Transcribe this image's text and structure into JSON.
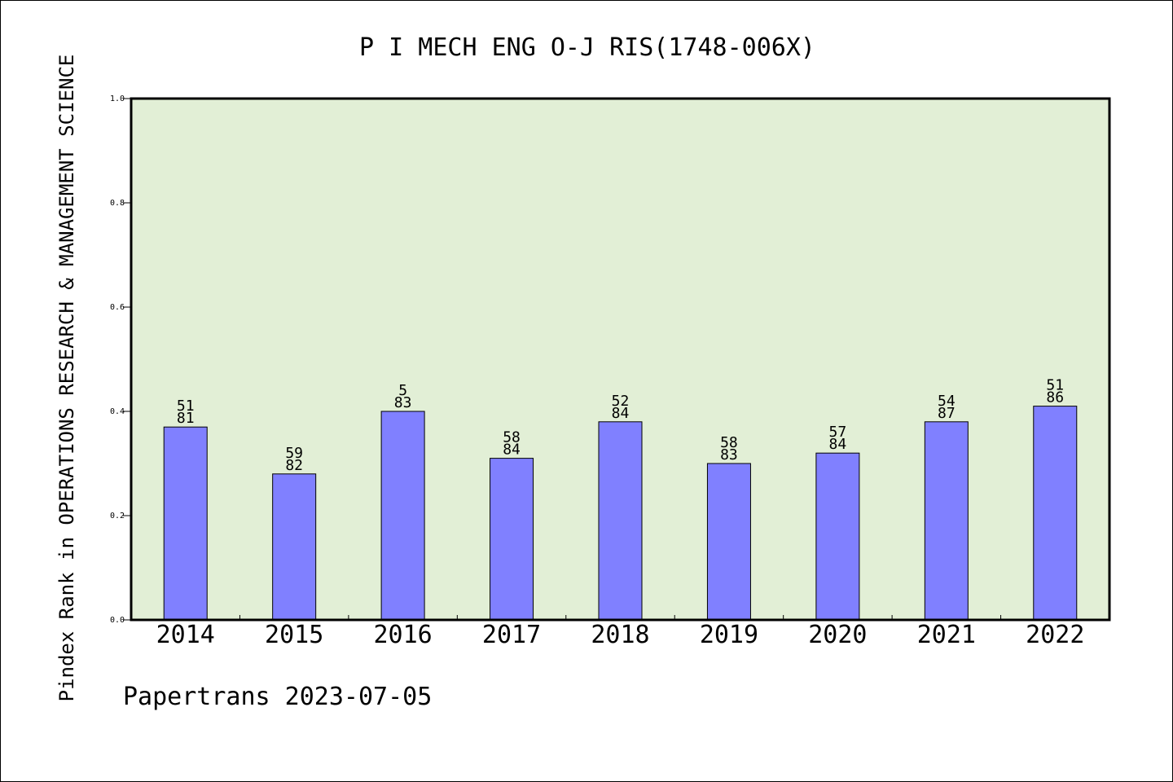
{
  "chart_data": {
    "type": "bar",
    "title": "P I MECH ENG O-J RIS(1748-006X)",
    "ylabel": "Pindex Rank in OPERATIONS RESEARCH & MANAGEMENT SCIENCE",
    "xlabel": "",
    "categories": [
      "2014",
      "2015",
      "2016",
      "2017",
      "2018",
      "2019",
      "2020",
      "2021",
      "2022"
    ],
    "values": [
      0.37,
      0.28,
      0.4,
      0.31,
      0.38,
      0.3,
      0.32,
      0.38,
      0.41
    ],
    "label_top": [
      "51",
      "59",
      "5",
      "58",
      "52",
      "58",
      "57",
      "54",
      "51"
    ],
    "label_bottom": [
      "81",
      "82",
      "83",
      "84",
      "84",
      "83",
      "84",
      "87",
      "86"
    ],
    "ylim": [
      0,
      1.0
    ],
    "yticks": [
      "0.0",
      "0.2",
      "0.4",
      "0.6",
      "0.8",
      "1.0"
    ],
    "grid": false,
    "colors": {
      "bar": "#8080ff",
      "plot_bg": "#e2efd6",
      "axis": "#000000"
    }
  },
  "footer": {
    "credit": "Papertrans 2023-07-05"
  }
}
